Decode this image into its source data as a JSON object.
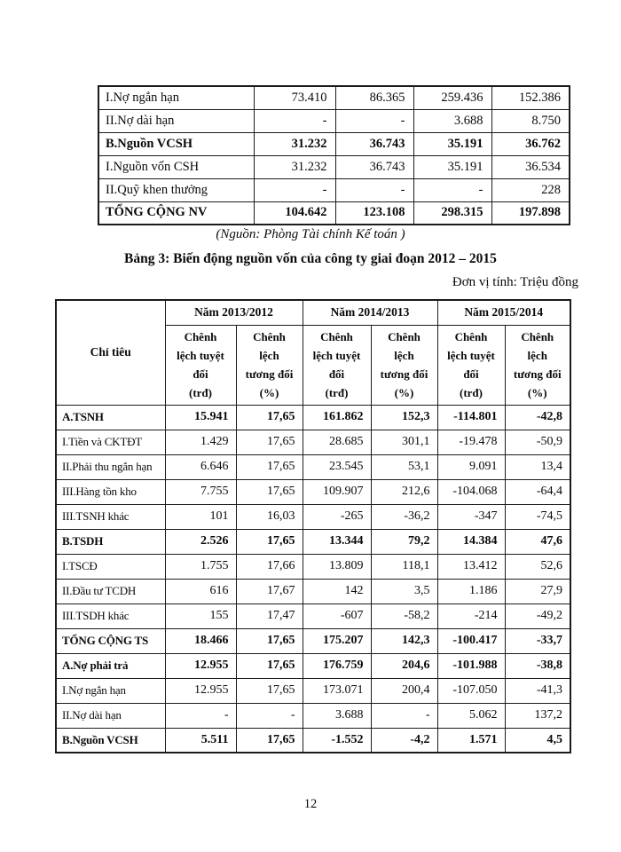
{
  "capital_table": {
    "rows": [
      {
        "label": "I.Nợ ngắn hạn",
        "bold": false,
        "values": [
          "73.410",
          "86.365",
          "259.436",
          "152.386"
        ]
      },
      {
        "label": "II.Nợ dài hạn",
        "bold": false,
        "values": [
          "-",
          "-",
          "3.688",
          "8.750"
        ]
      },
      {
        "label": "B.Nguồn VCSH",
        "bold": true,
        "values": [
          "31.232",
          "36.743",
          "35.191",
          "36.762"
        ]
      },
      {
        "label": "I.Nguồn vốn CSH",
        "bold": false,
        "values": [
          "31.232",
          "36.743",
          "35.191",
          "36.534"
        ]
      },
      {
        "label": "II.Quỹ khen thưởng",
        "bold": false,
        "values": [
          "-",
          "-",
          "-",
          "228"
        ]
      },
      {
        "label": "TỔNG CỘNG NV",
        "bold": true,
        "values": [
          "104.642",
          "123.108",
          "298.315",
          "197.898"
        ]
      }
    ]
  },
  "source_note": "(Nguồn: Phòng Tài chính Kế toán )",
  "table_title": "Bảng 3: Biến động nguồn vốn của công ty giai đoạn 2012 – 2015",
  "unit_note": "Đơn vị tính: Triệu đồng",
  "variance_table": {
    "header": {
      "criteria_label": "Chỉ tiêu",
      "year_groups": [
        "Năm 2013/2012",
        "Năm 2014/2013",
        "Năm 2015/2014"
      ],
      "absolute_diff_label": "Chênh\nlệch tuyệt\nđối\n(trđ)",
      "relative_diff_label": "Chênh\nlệch\ntương đối\n(%)"
    },
    "rows": [
      {
        "label": "A.TSNH",
        "bold": true,
        "values": [
          "15.941",
          "17,65",
          "161.862",
          "152,3",
          "-114.801",
          "-42,8"
        ]
      },
      {
        "label": "I.Tiền và CKTĐT",
        "bold": false,
        "values": [
          "1.429",
          "17,65",
          "28.685",
          "301,1",
          "-19.478",
          "-50,9"
        ]
      },
      {
        "label": "II.Phải thu ngắn hạn",
        "bold": false,
        "values": [
          "6.646",
          "17,65",
          "23.545",
          "53,1",
          "9.091",
          "13,4"
        ]
      },
      {
        "label": "III.Hàng tồn kho",
        "bold": false,
        "values": [
          "7.755",
          "17,65",
          "109.907",
          "212,6",
          "-104.068",
          "-64,4"
        ]
      },
      {
        "label": "III.TSNH khác",
        "bold": false,
        "values": [
          "101",
          "16,03",
          "-265",
          "-36,2",
          "-347",
          "-74,5"
        ]
      },
      {
        "label": "B.TSDH",
        "bold": true,
        "values": [
          "2.526",
          "17,65",
          "13.344",
          "79,2",
          "14.384",
          "47,6"
        ]
      },
      {
        "label": "I.TSCĐ",
        "bold": false,
        "values": [
          "1.755",
          "17,66",
          "13.809",
          "118,1",
          "13.412",
          "52,6"
        ]
      },
      {
        "label": "II.Đầu tư TCDH",
        "bold": false,
        "values": [
          "616",
          "17,67",
          "142",
          "3,5",
          "1.186",
          "27,9"
        ]
      },
      {
        "label": "III.TSDH khác",
        "bold": false,
        "values": [
          "155",
          "17,47",
          "-607",
          "-58,2",
          "-214",
          "-49,2"
        ]
      },
      {
        "label": "TỔNG CỘNG TS",
        "bold": true,
        "values": [
          "18.466",
          "17,65",
          "175.207",
          "142,3",
          "-100.417",
          "-33,7"
        ]
      },
      {
        "label": "A.Nợ phải trả",
        "bold": true,
        "values": [
          "12.955",
          "17,65",
          "176.759",
          "204,6",
          "-101.988",
          "-38,8"
        ]
      },
      {
        "label": "I.Nợ ngắn hạn",
        "bold": false,
        "values": [
          "12.955",
          "17,65",
          "173.071",
          "200,4",
          "-107.050",
          "-41,3"
        ]
      },
      {
        "label": "II.Nợ dài hạn",
        "bold": false,
        "values": [
          "-",
          "-",
          "3.688",
          "-",
          "5.062",
          "137,2"
        ]
      },
      {
        "label": "B.Nguồn VCSH",
        "bold": true,
        "values": [
          "5.511",
          "17,65",
          "-1.552",
          "-4,2",
          "1.571",
          "4,5"
        ]
      }
    ]
  },
  "page_number": "12"
}
